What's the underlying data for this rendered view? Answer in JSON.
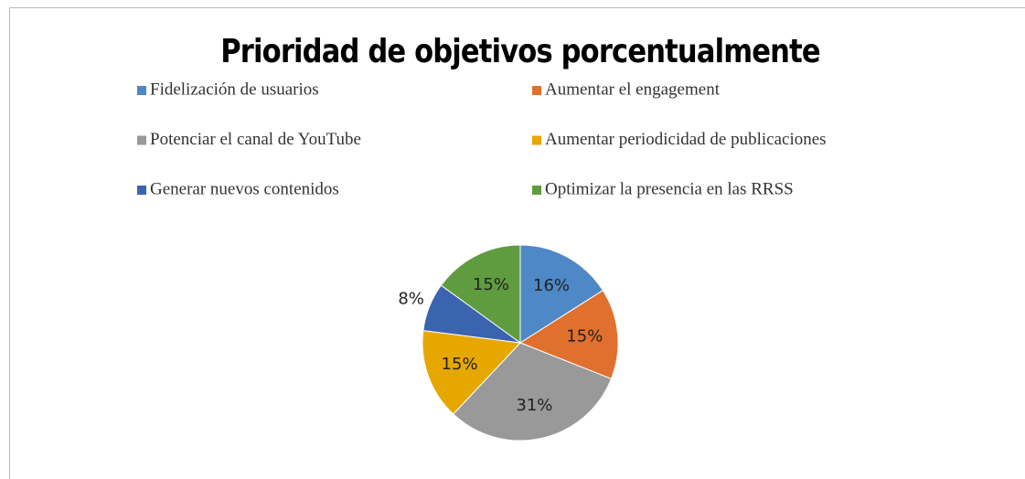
{
  "chart_data": {
    "type": "pie",
    "title": "Prioridad de objetivos porcentualmente",
    "categories": [
      "Fidelización de usuarios",
      "Aumentar el engagement",
      "Potenciar el canal de YouTube",
      "Aumentar periodicidad de publicaciones",
      "Generar nuevos contenidos",
      "Optimizar la presencia en las RRSS"
    ],
    "values": [
      16,
      15,
      31,
      15,
      8,
      15
    ],
    "value_labels": [
      "16%",
      "15%",
      "31%",
      "15%",
      "8%",
      "15%"
    ],
    "colors": [
      "#4e88c6",
      "#e0702d",
      "#999999",
      "#e6a800",
      "#3b64ae",
      "#5f9c40"
    ]
  }
}
